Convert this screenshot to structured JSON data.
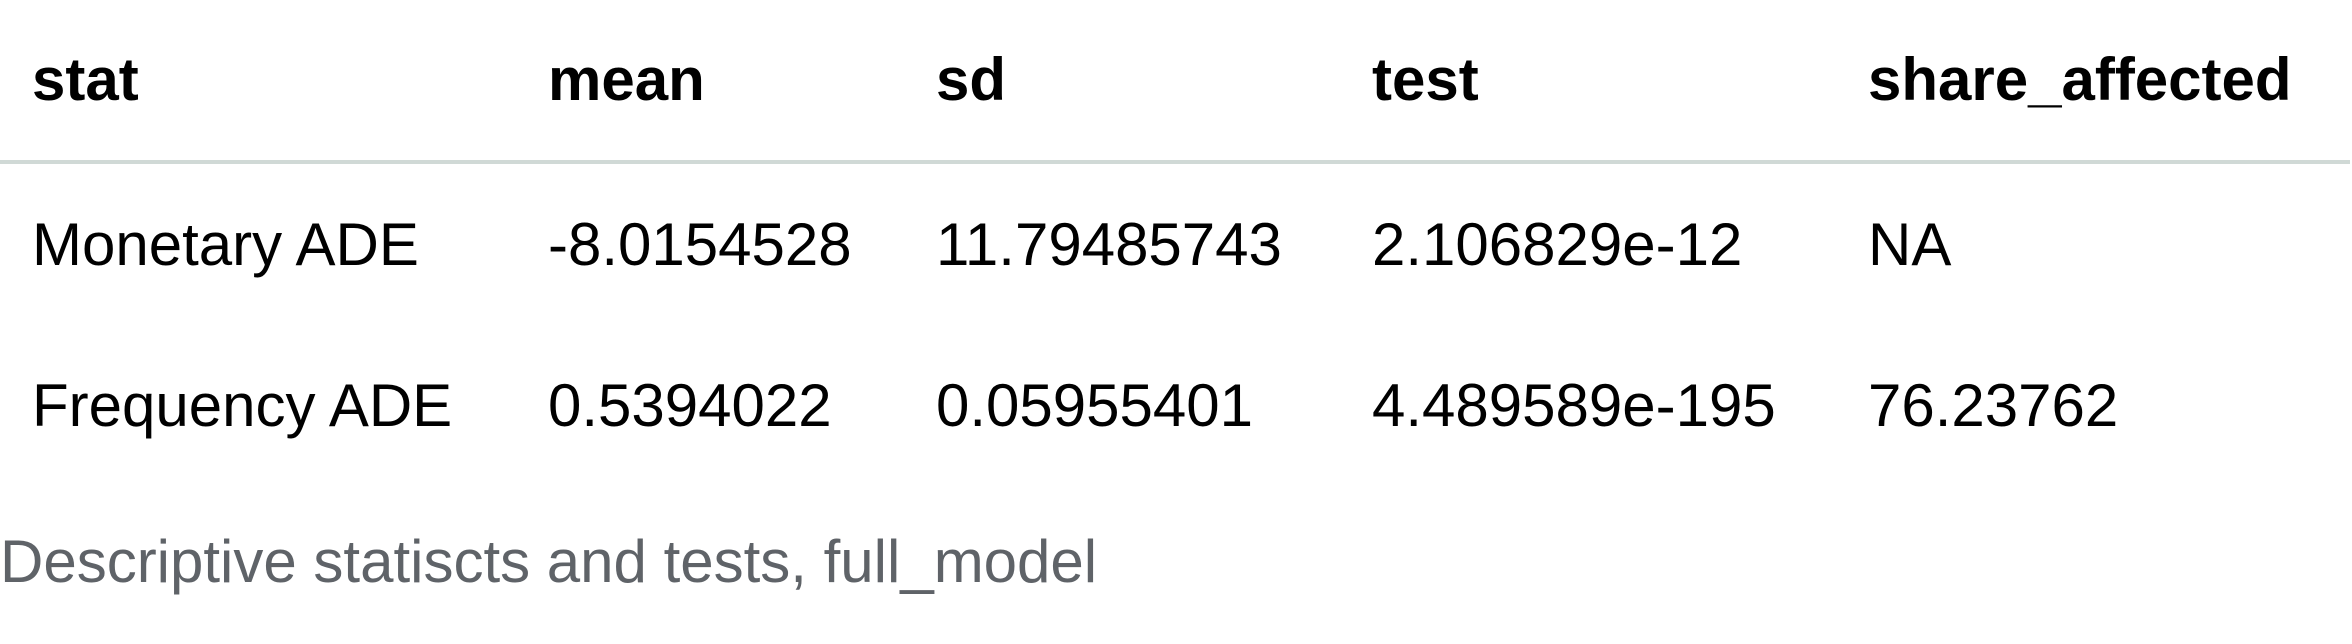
{
  "table": {
    "headers": [
      "stat",
      "mean",
      "sd",
      "test",
      "share_affected"
    ],
    "rows": [
      [
        "Monetary ADE",
        "-8.0154528",
        "11.79485743",
        "2.106829e-12",
        "NA"
      ],
      [
        "Frequency ADE",
        "0.5394022",
        "0.05955401",
        "4.489589e-195",
        "76.23762"
      ]
    ]
  },
  "caption": "Descriptive statiscts and tests, full_model",
  "colors": {
    "header_rule": "#d0d9d6",
    "caption_text": "#5f6368"
  }
}
